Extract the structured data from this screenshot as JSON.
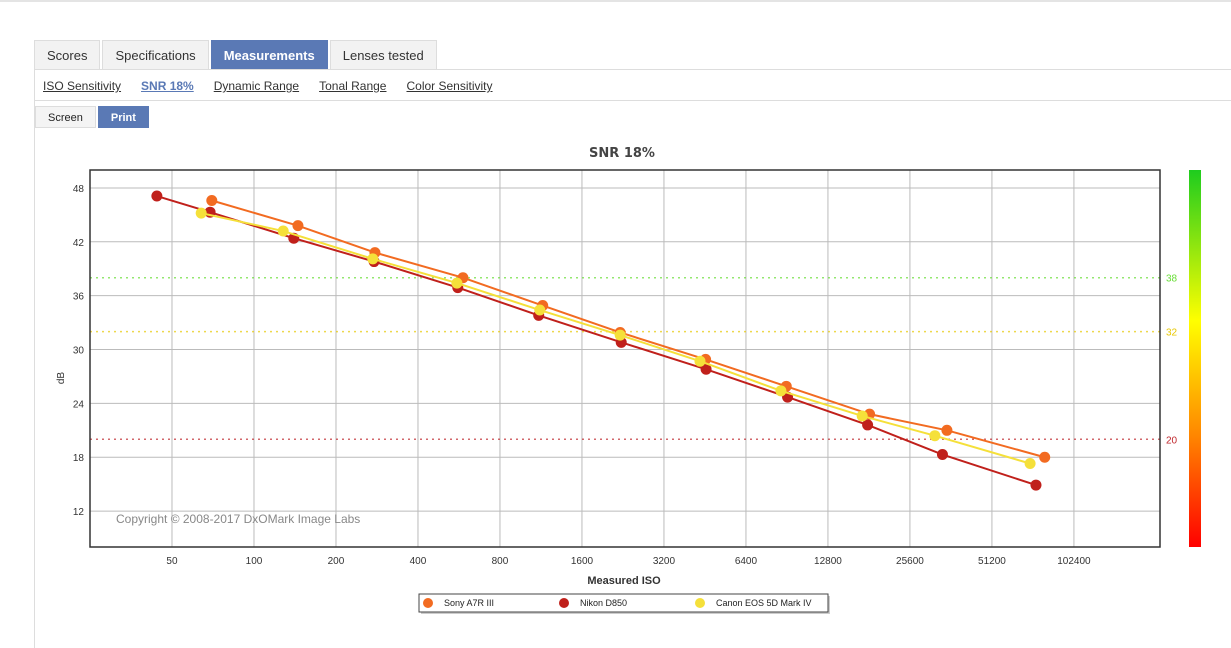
{
  "tabs": [
    "Scores",
    "Specifications",
    "Measurements",
    "Lenses tested"
  ],
  "active_tab": "Measurements",
  "subnav": [
    "ISO Sensitivity",
    "SNR 18%",
    "Dynamic Range",
    "Tonal Range",
    "Color Sensitivity"
  ],
  "active_subnav": "SNR 18%",
  "modes": [
    "Screen",
    "Print"
  ],
  "active_mode": "Print",
  "copyright": "Copyright © 2008-2017 DxOMark Image Labs",
  "chart_data": {
    "type": "line",
    "title": "SNR 18%",
    "xlabel": "Measured ISO",
    "ylabel": "dB",
    "xscale": "log2",
    "xlim": [
      25,
      212000
    ],
    "ylim": [
      8,
      50
    ],
    "xticks": [
      50,
      100,
      200,
      400,
      800,
      1600,
      3200,
      6400,
      12800,
      25600,
      51200,
      102400
    ],
    "yticks": [
      12,
      18,
      24,
      30,
      36,
      42,
      48
    ],
    "grid": true,
    "legend_position": "bottom",
    "reference_lines": [
      {
        "value": 38,
        "label": "38",
        "color": "#66dd33"
      },
      {
        "value": 32,
        "label": "32",
        "color": "#e8c800"
      },
      {
        "value": 20,
        "label": "20",
        "color": "#c0272d"
      }
    ],
    "series": [
      {
        "name": "Sony A7R III",
        "color": "#f26b21",
        "x": [
          70,
          145,
          278,
          585,
          1148,
          2210,
          4550,
          9000,
          18200,
          35000,
          80000
        ],
        "y": [
          46.6,
          43.8,
          40.8,
          38.0,
          34.9,
          31.9,
          28.9,
          25.9,
          22.8,
          21.0,
          18.0
        ]
      },
      {
        "name": "Nikon D850",
        "color": "#c0201b",
        "x": [
          44,
          69,
          140,
          276,
          560,
          1110,
          2230,
          4570,
          9100,
          17900,
          33700,
          74300
        ],
        "y": [
          47.1,
          45.3,
          42.4,
          39.8,
          36.9,
          33.8,
          30.8,
          27.8,
          24.7,
          21.6,
          18.3,
          14.9
        ]
      },
      {
        "name": "Canon EOS 5D Mark IV",
        "color": "#f5e03a",
        "x": [
          64,
          128,
          273,
          556,
          1120,
          2210,
          4340,
          8600,
          17100,
          31600,
          70700
        ],
        "y": [
          45.2,
          43.2,
          40.1,
          37.4,
          34.4,
          31.6,
          28.7,
          25.4,
          22.6,
          20.4,
          17.3
        ]
      }
    ]
  }
}
